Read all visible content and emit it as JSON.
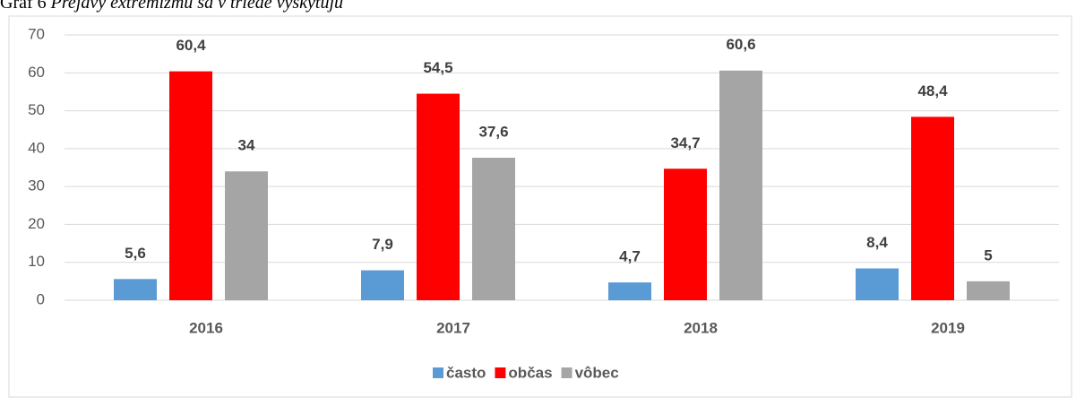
{
  "chart_data": {
    "type": "bar",
    "title_label": "Graf 6",
    "title": "Prejavy extrémizmu sa v triede vyskytujú",
    "categories": [
      "2016",
      "2017",
      "2018",
      "2019"
    ],
    "series": [
      {
        "name": "často",
        "color": "#5b9bd5",
        "values": [
          5.6,
          7.9,
          4.7,
          8.4
        ],
        "value_labels": [
          "5,6",
          "7,9",
          "4,7",
          "8,4"
        ]
      },
      {
        "name": "občas",
        "color": "#ff0000",
        "values": [
          60.4,
          54.5,
          34.7,
          48.4
        ],
        "value_labels": [
          "60,4",
          "54,5",
          "34,7",
          "48,4"
        ]
      },
      {
        "name": "vôbec",
        "color": "#a5a5a5",
        "values": [
          34,
          37.6,
          60.6,
          5
        ],
        "value_labels": [
          "34",
          "37,6",
          "60,6",
          "5"
        ]
      }
    ],
    "ylim": [
      0,
      70
    ],
    "yticks": [
      0,
      10,
      20,
      30,
      40,
      50,
      60,
      70
    ],
    "grid": true,
    "legend": "bottom"
  }
}
